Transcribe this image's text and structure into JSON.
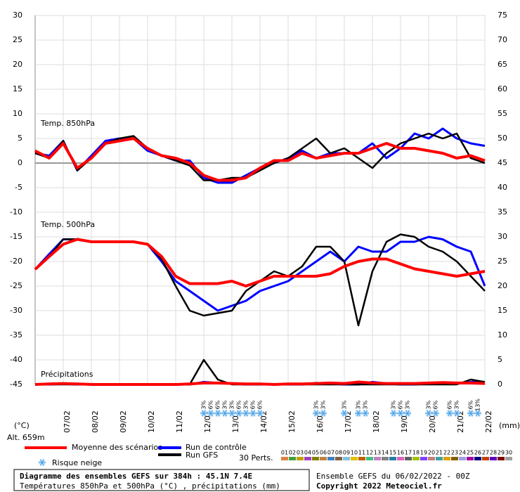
{
  "chart_data": {
    "type": "line",
    "title": "Diagramme des ensembles GEFS sur 384h : 45.1N 7.4E",
    "subtitle": "Températures 850hPa et 500hPa (°C) , précipitations (mm)",
    "source": "Ensemble GEFS du 06/02/2022 - 00Z",
    "copyright": "Copyright 2022 Meteociel.fr",
    "altitude": "Alt. 659m",
    "y_unit": "(°C)",
    "y2_unit": "(mm)",
    "panel_labels": [
      "Temp. 850hPa",
      "Temp. 500hPa",
      "Précipitations"
    ],
    "grid": true,
    "xlim": [
      0,
      384
    ],
    "xticks": [
      {
        "value": 24,
        "label": "07/02"
      },
      {
        "value": 48,
        "label": "08/02"
      },
      {
        "value": 72,
        "label": "09/02"
      },
      {
        "value": 96,
        "label": "10/02"
      },
      {
        "value": 120,
        "label": "11/02"
      },
      {
        "value": 144,
        "label": "12/02"
      },
      {
        "value": 168,
        "label": "13/02"
      },
      {
        "value": 192,
        "label": "14/02"
      },
      {
        "value": 216,
        "label": "15/02"
      },
      {
        "value": 240,
        "label": "16/02"
      },
      {
        "value": 264,
        "label": "17/02"
      },
      {
        "value": 288,
        "label": "18/02"
      },
      {
        "value": 312,
        "label": "19/02"
      },
      {
        "value": 336,
        "label": "20/02"
      },
      {
        "value": 360,
        "label": "21/02"
      },
      {
        "value": 384,
        "label": "22/02"
      }
    ],
    "ylim": [
      -45,
      30
    ],
    "yticks": [
      30,
      25,
      20,
      15,
      10,
      5,
      0,
      -5,
      -10,
      -15,
      -20,
      -25,
      -30,
      -35,
      -40,
      -45
    ],
    "y2lim": [
      0,
      75
    ],
    "y2ticks": [
      75,
      70,
      65,
      60,
      55,
      50,
      45,
      40,
      35,
      30,
      25,
      20,
      15,
      10,
      5,
      0
    ],
    "x": [
      0,
      12,
      24,
      36,
      48,
      60,
      72,
      84,
      96,
      108,
      120,
      132,
      144,
      156,
      168,
      180,
      192,
      204,
      216,
      228,
      240,
      252,
      264,
      276,
      288,
      300,
      312,
      324,
      336,
      348,
      360,
      372,
      384
    ],
    "series": [
      {
        "name": "Moyenne des scénarios",
        "color": "#ff0000",
        "temp_850": [
          2.5,
          1,
          4,
          -1,
          1,
          4,
          4.5,
          5,
          3,
          1.5,
          1,
          0,
          -2.5,
          -3.5,
          -3.5,
          -3,
          -1,
          0.5,
          0.5,
          2,
          1,
          1.5,
          2,
          2,
          3,
          4,
          3,
          3,
          2.5,
          2,
          1,
          1.5,
          0.5
        ],
        "temp_500": [
          -21.6,
          -19,
          -16.5,
          -15.5,
          -16,
          -16,
          -16,
          -16,
          -16.5,
          -19,
          -23,
          -24.5,
          -24.5,
          -24.5,
          -24,
          -25,
          -24,
          -23,
          -23,
          -23,
          -23,
          -22.5,
          -21,
          -20,
          -19.5,
          -19.5,
          -20.5,
          -21.5,
          -22,
          -22.5,
          -23,
          -22.5,
          -22
        ],
        "precip": [
          0,
          0.1,
          0.2,
          0.1,
          0,
          0,
          0,
          0,
          0,
          0,
          0,
          0.1,
          0.3,
          0.3,
          0.2,
          0.1,
          0.1,
          0,
          0.1,
          0.1,
          0.2,
          0.3,
          0.2,
          0.5,
          0.3,
          0.2,
          0.2,
          0.2,
          0.3,
          0.4,
          0.3,
          0.3,
          0.2
        ]
      },
      {
        "name": "Run de contrôle",
        "color": "#0000ff",
        "temp_850": [
          2,
          1.5,
          4.5,
          -1.5,
          1.5,
          4.5,
          5,
          5,
          2.5,
          1.5,
          0.5,
          0.5,
          -3,
          -4,
          -4,
          -2.5,
          -1,
          0,
          1,
          2.5,
          1,
          2,
          2,
          2,
          4,
          1,
          3,
          6,
          5,
          7,
          5,
          4,
          3.5
        ],
        "temp_500": [
          -21.6,
          -18.5,
          -15.5,
          -15.5,
          -16,
          -16,
          -16,
          -16,
          -16.5,
          -20,
          -24,
          -26,
          -28,
          -30,
          -29,
          -28,
          -26,
          -25,
          -24,
          -22,
          -20,
          -18,
          -20,
          -17,
          -18,
          -18,
          -16,
          -16,
          -15,
          -15.5,
          -17,
          -18,
          -25
        ],
        "precip": [
          0,
          0,
          0.1,
          0,
          0,
          0,
          0,
          0,
          0,
          0,
          0,
          0,
          0.5,
          0.3,
          0.2,
          0,
          0,
          0,
          0,
          0,
          0.3,
          0.2,
          0,
          0,
          0.5,
          0.2,
          0,
          0,
          0.2,
          0.3,
          0.2,
          0.5,
          0.5
        ]
      },
      {
        "name": "Run GFS",
        "color": "#000000",
        "temp_850": [
          2,
          1,
          4.5,
          -1.5,
          1,
          4,
          5,
          5.5,
          3,
          1.5,
          0.5,
          -0.5,
          -3.5,
          -3.5,
          -3,
          -3,
          -1.5,
          0,
          1,
          3,
          5,
          2,
          3,
          1,
          -1,
          2,
          4,
          5,
          6,
          5,
          6,
          1,
          0
        ],
        "temp_500": [
          -21.6,
          -19,
          -15.5,
          -15.5,
          -16,
          -16,
          -16,
          -16,
          -16.5,
          -19.5,
          -25,
          -30,
          -31,
          -30.5,
          -30,
          -26,
          -24,
          -22,
          -23,
          -21,
          -17,
          -17,
          -20,
          -33,
          -22,
          -16,
          -14.5,
          -15,
          -17,
          -18,
          -20,
          -23,
          -26
        ],
        "precip": [
          0,
          0,
          0,
          0,
          0,
          0,
          0,
          0,
          0,
          0,
          0,
          0,
          5,
          1,
          0,
          0,
          0,
          0,
          0,
          0,
          0,
          0,
          0,
          0,
          0,
          0,
          0,
          0,
          0,
          0,
          0,
          1,
          0.5
        ]
      }
    ],
    "snow_risk": {
      "label": "Risque neige",
      "x": [
        144,
        150,
        156,
        162,
        168,
        174,
        180,
        186,
        192,
        240,
        246,
        264,
        276,
        282,
        306,
        312,
        318,
        336,
        342,
        354,
        360,
        372,
        378
      ],
      "values": [
        3,
        6,
        6,
        3,
        3,
        6,
        3,
        6,
        6,
        3,
        3,
        3,
        3,
        3,
        3,
        6,
        3,
        3,
        6,
        6,
        3,
        6,
        13
      ],
      "value_labels": [
        "3%",
        "6%",
        "6%",
        "3%",
        "3%",
        "6%",
        "3%",
        "6%",
        "6%",
        "3%",
        "3%",
        "3%",
        "3%",
        "3%",
        "3%",
        "6%",
        "3%",
        "3%",
        "6%",
        "6%",
        "3%",
        "6%",
        "13%"
      ]
    },
    "perturbations": {
      "label": "30 Perts.",
      "names": [
        "01",
        "02",
        "03",
        "04",
        "05",
        "06",
        "07",
        "08",
        "09",
        "10",
        "11",
        "12",
        "13",
        "14",
        "15",
        "16",
        "17",
        "18",
        "19",
        "20",
        "21",
        "22",
        "23",
        "24",
        "25",
        "26",
        "27",
        "28",
        "29",
        "30"
      ],
      "colors": [
        "#e08040",
        "#40a040",
        "#c0a000",
        "#a040c0",
        "#808000",
        "#c08040",
        "#4080c0",
        "#806040",
        "#80c0e0",
        "#e0c000",
        "#c06000",
        "#40c080",
        "#c080c0",
        "#808080",
        "#2080a0",
        "#e060c0",
        "#606060",
        "#a0c000",
        "#8040ff",
        "#c08080",
        "#40a0a0",
        "#e0a000",
        "#806000",
        "#a0a0e0",
        "#a000a0",
        "#000080",
        "#c04000",
        "#6000c0",
        "#800000",
        "#a0a0a0"
      ]
    }
  }
}
